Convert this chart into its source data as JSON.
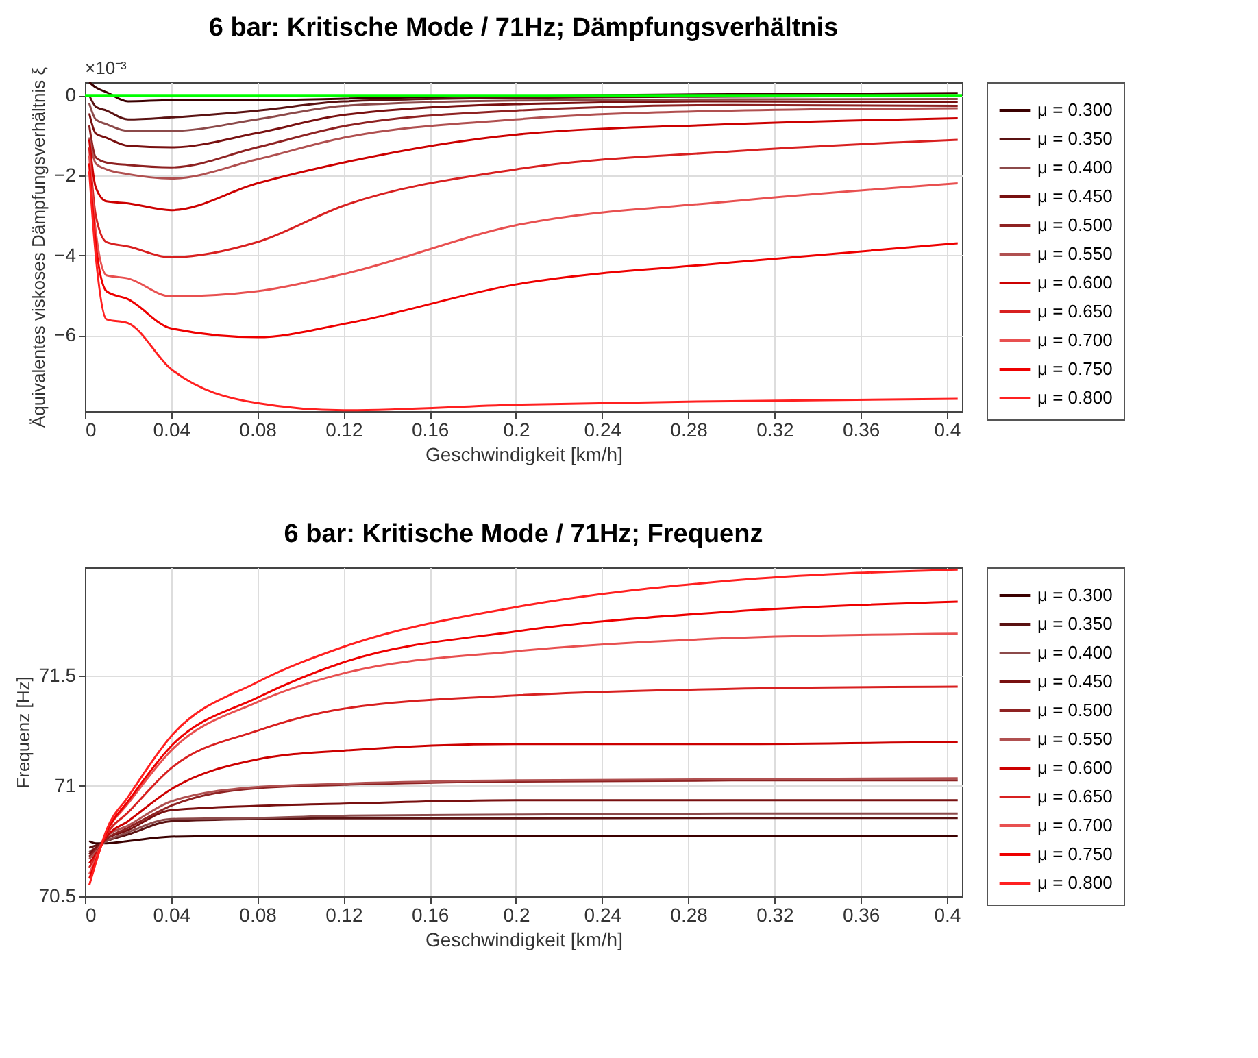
{
  "chart_data": [
    {
      "type": "line",
      "title": "6 bar: Kritische Mode / 71Hz; Dämpfungsverhältnis",
      "xlabel": "Geschwindigkeit [km/h]",
      "ylabel": "Äquivalentes viskoses Dämpfungsverhältnis ξ",
      "annotations": [
        "×10⁻³"
      ],
      "x": [
        0.002,
        0.005,
        0.01,
        0.02,
        0.04,
        0.08,
        0.12,
        0.2,
        0.3,
        0.405
      ],
      "series": [
        {
          "name": "μ = 0.300",
          "color": "#3a0000",
          "values": [
            0.33,
            0.2,
            0.08,
            -0.15,
            -0.12,
            -0.12,
            -0.08,
            -0.01,
            0.03,
            0.06
          ]
        },
        {
          "name": "μ = 0.350",
          "color": "#5a1212",
          "values": [
            0.0,
            -0.28,
            -0.38,
            -0.6,
            -0.55,
            -0.38,
            -0.15,
            -0.06,
            -0.03,
            -0.01
          ]
        },
        {
          "name": "μ = 0.400",
          "color": "#8c4a4a",
          "values": [
            -0.2,
            -0.6,
            -0.72,
            -0.89,
            -0.89,
            -0.6,
            -0.26,
            -0.13,
            -0.1,
            -0.09
          ]
        },
        {
          "name": "μ = 0.450",
          "color": "#781010",
          "values": [
            -0.45,
            -0.95,
            -1.06,
            -1.26,
            -1.3,
            -0.94,
            -0.49,
            -0.22,
            -0.15,
            -0.17
          ]
        },
        {
          "name": "μ = 0.500",
          "color": "#8e2222",
          "values": [
            -0.75,
            -1.55,
            -1.68,
            -1.74,
            -1.8,
            -1.3,
            -0.77,
            -0.38,
            -0.24,
            -0.26
          ]
        },
        {
          "name": "μ = 0.550",
          "color": "#b05050",
          "values": [
            -1.05,
            -1.7,
            -1.85,
            -1.97,
            -2.08,
            -1.6,
            -1.06,
            -0.6,
            -0.38,
            -0.32
          ]
        },
        {
          "name": "μ = 0.600",
          "color": "#cc0000",
          "values": [
            -1.1,
            -2.3,
            -2.65,
            -2.7,
            -2.87,
            -2.2,
            -1.68,
            -0.98,
            -0.72,
            -0.57
          ]
        },
        {
          "name": "μ = 0.650",
          "color": "#d82020",
          "values": [
            -1.3,
            -3.0,
            -3.67,
            -3.78,
            -4.05,
            -3.67,
            -2.76,
            -1.85,
            -1.4,
            -1.11
          ]
        },
        {
          "name": "μ = 0.700",
          "color": "#e85050",
          "values": [
            -1.5,
            -3.4,
            -4.5,
            -4.58,
            -5.03,
            -4.9,
            -4.47,
            -3.25,
            -2.65,
            -2.2
          ]
        },
        {
          "name": "μ = 0.750",
          "color": "#ee0000",
          "values": [
            -1.7,
            -3.7,
            -4.9,
            -5.1,
            -5.83,
            -6.05,
            -5.72,
            -4.73,
            -4.18,
            -3.7
          ]
        },
        {
          "name": "μ = 0.800",
          "color": "#ff2020",
          "values": [
            -1.9,
            -4.0,
            -5.6,
            -5.7,
            -6.85,
            -7.7,
            -7.88,
            -7.74,
            -7.65,
            -7.59
          ]
        }
      ],
      "xlim": [
        0,
        0.407
      ],
      "xticks": [
        0,
        0.04,
        0.08,
        0.12,
        0.16,
        0.2,
        0.24,
        0.28,
        0.32,
        0.36,
        0.4
      ],
      "ylim": [
        -7.9,
        0.33
      ],
      "yticks": [
        0,
        -2,
        -4,
        -6
      ],
      "ref_lines": [
        {
          "axis": "y",
          "value": 0,
          "color": "#00ff00"
        }
      ],
      "grid": true,
      "legend": "right"
    },
    {
      "type": "line",
      "title": "6 bar: Kritische Mode / 71Hz; Frequenz",
      "xlabel": "Geschwindigkeit [km/h]",
      "ylabel": "Frequenz [Hz]",
      "x": [
        0.002,
        0.005,
        0.01,
        0.02,
        0.04,
        0.08,
        0.12,
        0.2,
        0.3,
        0.405
      ],
      "series": [
        {
          "name": "μ = 0.300",
          "color": "#3a0000",
          "values": [
            70.75,
            70.74,
            70.74,
            70.75,
            70.77,
            70.775,
            70.775,
            70.775,
            70.775,
            70.775
          ]
        },
        {
          "name": "μ = 0.350",
          "color": "#5a1212",
          "values": [
            70.72,
            70.73,
            70.75,
            70.78,
            70.84,
            70.85,
            70.853,
            70.853,
            70.855,
            70.855
          ]
        },
        {
          "name": "μ = 0.400",
          "color": "#8c4a4a",
          "values": [
            70.7,
            70.72,
            70.75,
            70.79,
            70.85,
            70.855,
            70.865,
            70.87,
            70.875,
            70.875
          ]
        },
        {
          "name": "μ = 0.450",
          "color": "#781010",
          "values": [
            70.69,
            70.72,
            70.76,
            70.8,
            70.89,
            70.91,
            70.92,
            70.935,
            70.935,
            70.935
          ]
        },
        {
          "name": "μ = 0.500",
          "color": "#8e2222",
          "values": [
            70.68,
            70.71,
            70.76,
            70.81,
            70.91,
            70.99,
            71.005,
            71.02,
            71.025,
            71.025
          ]
        },
        {
          "name": "μ = 0.550",
          "color": "#b05050",
          "values": [
            70.67,
            70.7,
            70.77,
            70.82,
            70.93,
            70.995,
            71.01,
            71.025,
            71.03,
            71.035
          ]
        },
        {
          "name": "μ = 0.600",
          "color": "#cc0000",
          "values": [
            70.65,
            70.69,
            70.77,
            70.84,
            70.985,
            71.12,
            71.16,
            71.19,
            71.19,
            71.2
          ]
        },
        {
          "name": "μ = 0.650",
          "color": "#d82020",
          "values": [
            70.63,
            70.68,
            70.78,
            70.88,
            71.08,
            71.25,
            71.35,
            71.41,
            71.44,
            71.45
          ]
        },
        {
          "name": "μ = 0.700",
          "color": "#e85050",
          "values": [
            70.6,
            70.67,
            70.79,
            70.92,
            71.16,
            71.38,
            71.51,
            71.61,
            71.67,
            71.69
          ]
        },
        {
          "name": "μ = 0.750",
          "color": "#ee0000",
          "values": [
            70.58,
            70.66,
            70.79,
            70.93,
            71.18,
            71.4,
            71.56,
            71.7,
            71.79,
            71.835
          ]
        },
        {
          "name": "μ = 0.800",
          "color": "#ff2020",
          "values": [
            70.55,
            70.65,
            70.8,
            70.95,
            71.225,
            71.47,
            71.63,
            71.81,
            71.93,
            71.98
          ]
        }
      ],
      "xlim": [
        0,
        0.407
      ],
      "xticks": [
        0,
        0.04,
        0.08,
        0.12,
        0.16,
        0.2,
        0.24,
        0.28,
        0.32,
        0.36,
        0.4
      ],
      "ylim": [
        70.5,
        71.99
      ],
      "yticks": [
        70.5,
        71,
        71.5
      ],
      "grid": true,
      "legend": "right"
    }
  ]
}
